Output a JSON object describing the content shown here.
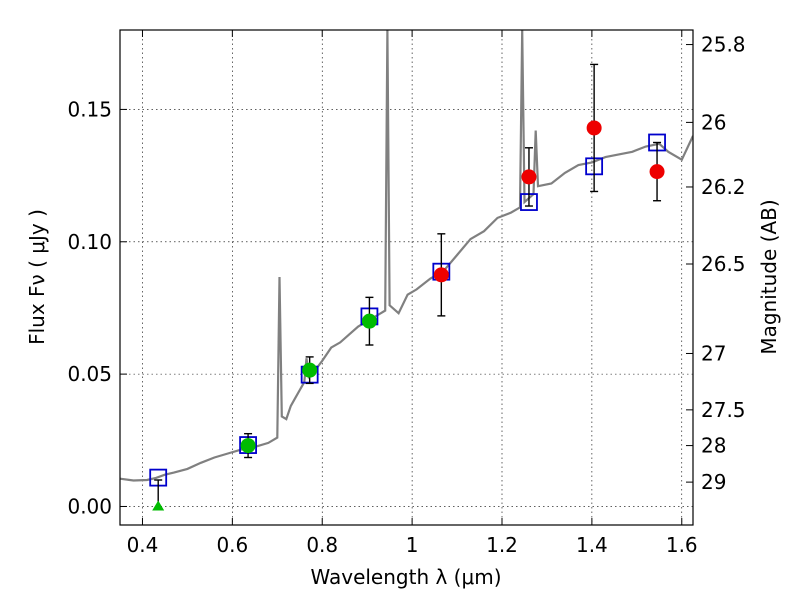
{
  "chart_data": {
    "type": "scatter",
    "xlabel": "Wavelength  λ (μm)",
    "ylabel": "Flux  Fν  ( μJy )",
    "ylabel2": "Magnitude (AB)",
    "xlim": [
      0.35,
      1.625
    ],
    "ylim": [
      -0.007,
      0.18
    ],
    "grid": true,
    "x_ticks": [
      0.4,
      0.6,
      0.8,
      1.0,
      1.2,
      1.4,
      1.6
    ],
    "x_tick_labels": [
      "0.4",
      "0.6",
      "0.8",
      "1",
      "1.2",
      "1.4",
      "1.6"
    ],
    "y_ticks": [
      0.0,
      0.05,
      0.1,
      0.15
    ],
    "y_tick_labels": [
      "0.00",
      "0.05",
      "0.10",
      "0.15"
    ],
    "mag_ticks": [
      {
        "label": "25.8",
        "flux": 0.1745
      },
      {
        "label": "26",
        "flux": 0.1451
      },
      {
        "label": "26.2",
        "flux": 0.1207
      },
      {
        "label": "26.5",
        "flux": 0.0916
      },
      {
        "label": "27",
        "flux": 0.0578
      },
      {
        "label": "27.5",
        "flux": 0.0365
      },
      {
        "label": "28",
        "flux": 0.023
      },
      {
        "label": "29",
        "flux": 0.0092
      }
    ],
    "series": [
      {
        "kind": "spectrum",
        "color": "#808080",
        "points": [
          [
            0.35,
            0.0105
          ],
          [
            0.38,
            0.0098
          ],
          [
            0.41,
            0.01
          ],
          [
            0.43,
            0.0108
          ],
          [
            0.45,
            0.012
          ],
          [
            0.47,
            0.0128
          ],
          [
            0.5,
            0.0142
          ],
          [
            0.53,
            0.0165
          ],
          [
            0.56,
            0.0185
          ],
          [
            0.59,
            0.02
          ],
          [
            0.62,
            0.0215
          ],
          [
            0.65,
            0.0225
          ],
          [
            0.68,
            0.024
          ],
          [
            0.7,
            0.026
          ],
          [
            0.705,
            0.0867
          ],
          [
            0.71,
            0.034
          ],
          [
            0.72,
            0.033
          ],
          [
            0.73,
            0.038
          ],
          [
            0.74,
            0.041
          ],
          [
            0.75,
            0.044
          ],
          [
            0.76,
            0.047
          ],
          [
            0.765,
            0.056
          ],
          [
            0.77,
            0.049
          ],
          [
            0.78,
            0.0505
          ],
          [
            0.8,
            0.055
          ],
          [
            0.82,
            0.06
          ],
          [
            0.84,
            0.062
          ],
          [
            0.86,
            0.065
          ],
          [
            0.88,
            0.068
          ],
          [
            0.9,
            0.07
          ],
          [
            0.92,
            0.072
          ],
          [
            0.94,
            0.074
          ],
          [
            0.945,
            0.18
          ],
          [
            0.95,
            0.076
          ],
          [
            0.97,
            0.073
          ],
          [
            0.99,
            0.08
          ],
          [
            1.01,
            0.082
          ],
          [
            1.04,
            0.086
          ],
          [
            1.07,
            0.089
          ],
          [
            1.1,
            0.095
          ],
          [
            1.13,
            0.101
          ],
          [
            1.16,
            0.104
          ],
          [
            1.19,
            0.109
          ],
          [
            1.22,
            0.111
          ],
          [
            1.24,
            0.113
          ],
          [
            1.245,
            0.18
          ],
          [
            1.25,
            0.115
          ],
          [
            1.27,
            0.118
          ],
          [
            1.275,
            0.142
          ],
          [
            1.28,
            0.121
          ],
          [
            1.31,
            0.122
          ],
          [
            1.34,
            0.126
          ],
          [
            1.37,
            0.129
          ],
          [
            1.4,
            0.13
          ],
          [
            1.43,
            0.132
          ],
          [
            1.46,
            0.133
          ],
          [
            1.49,
            0.134
          ],
          [
            1.52,
            0.136
          ],
          [
            1.55,
            0.137
          ],
          [
            1.57,
            0.134
          ],
          [
            1.6,
            0.131
          ],
          [
            1.625,
            0.14
          ]
        ]
      },
      {
        "kind": "model_box",
        "color": "#0000cc",
        "points": [
          {
            "x": 0.435,
            "y": 0.0109
          },
          {
            "x": 0.635,
            "y": 0.0232
          },
          {
            "x": 0.772,
            "y": 0.0498
          },
          {
            "x": 0.905,
            "y": 0.0718
          },
          {
            "x": 1.065,
            "y": 0.0887
          },
          {
            "x": 1.26,
            "y": 0.115
          },
          {
            "x": 1.405,
            "y": 0.1285
          },
          {
            "x": 1.545,
            "y": 0.1375
          }
        ]
      },
      {
        "kind": "green_points",
        "color": "#00bb00",
        "points": [
          {
            "x": 0.635,
            "y": 0.023,
            "err": 0.0045
          },
          {
            "x": 0.772,
            "y": 0.0515,
            "err": 0.005
          },
          {
            "x": 0.905,
            "y": 0.07,
            "err": 0.009
          }
        ]
      },
      {
        "kind": "red_points",
        "color": "#ee0000",
        "points": [
          {
            "x": 1.065,
            "y": 0.0875,
            "err": 0.0155
          },
          {
            "x": 1.26,
            "y": 0.1245,
            "err": 0.011
          },
          {
            "x": 1.405,
            "y": 0.143,
            "err": 0.024
          },
          {
            "x": 1.545,
            "y": 0.1265,
            "err": 0.011
          }
        ]
      },
      {
        "kind": "upper_limit",
        "color": "#00bb00",
        "points": [
          {
            "x": 0.435,
            "y": 0.0,
            "err_up": 0.01
          }
        ]
      }
    ]
  }
}
